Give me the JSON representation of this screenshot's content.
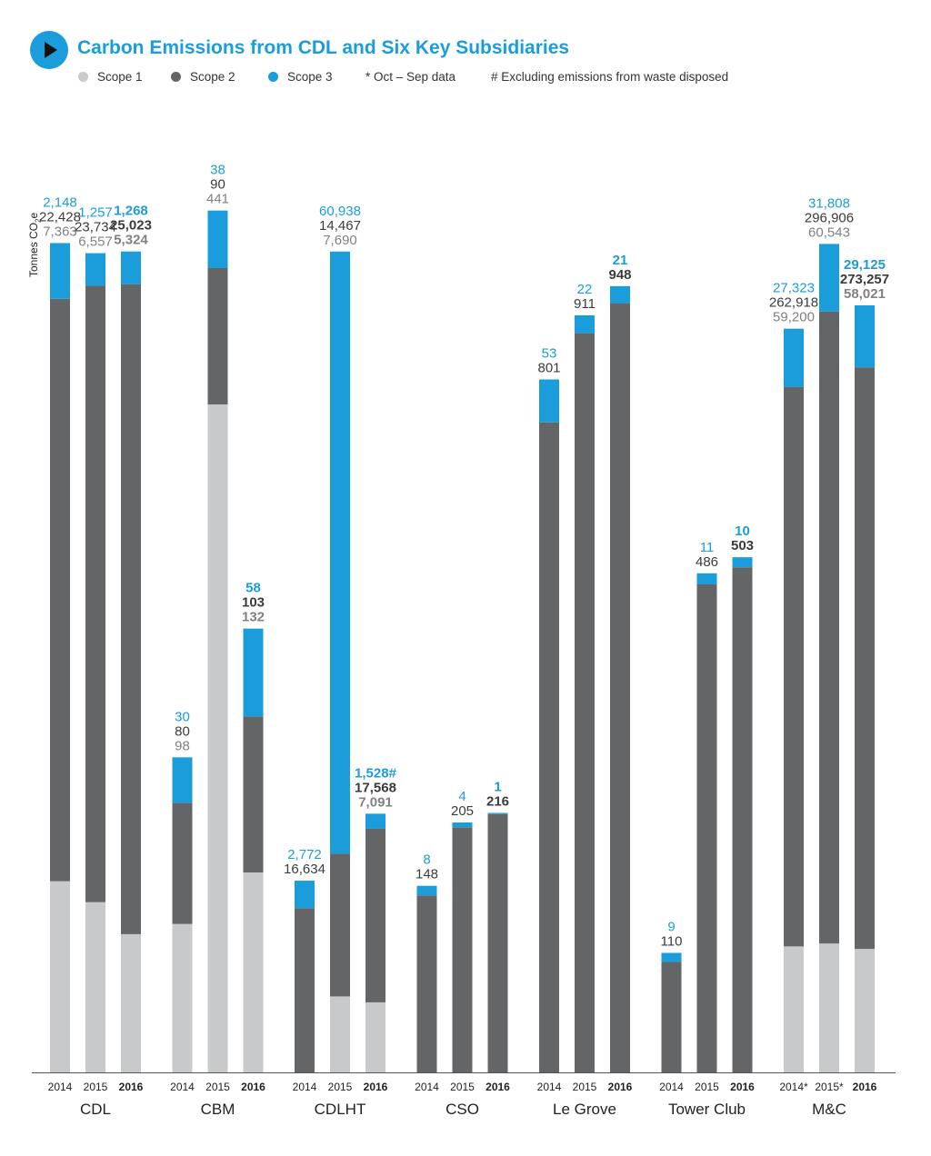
{
  "header": {
    "title": "Carbon Emissions from CDL and Six Key Subsidiaries",
    "play_icon": "play-icon"
  },
  "legend": {
    "items": [
      {
        "label": "Scope 1",
        "color": "#c8c9cb"
      },
      {
        "label": "Scope 2",
        "color": "#646567"
      },
      {
        "label": "Scope 3",
        "color": "#1b9ddb"
      }
    ],
    "notes": [
      "* Oct – Sep data",
      "# Excluding emissions from waste disposed"
    ]
  },
  "chart_data": {
    "type": "bar",
    "stacked": true,
    "ylabel_main": "Tonnes CO",
    "ylabel_sub": "2",
    "ylabel_tail": "e",
    "ylim": [
      0,
      100
    ],
    "groups": [
      {
        "name": "CDL",
        "scale_max": 35000,
        "bars": [
          {
            "year": "2014",
            "bold": false,
            "scope1": 7363,
            "scope2": 22428,
            "scope3": 2148,
            "labels": {
              "scope3": "2,148",
              "scope2": "22,428",
              "scope1": "7,363"
            }
          },
          {
            "year": "2015",
            "bold": false,
            "scope1": 6557,
            "scope2": 23734,
            "scope3": 1257,
            "labels": {
              "scope3": "1,257",
              "scope2": "23,734",
              "scope1": "6,557"
            }
          },
          {
            "year": "2016",
            "bold": true,
            "scope1": 5324,
            "scope2": 25023,
            "scope3": 1268,
            "labels": {
              "scope3": "1,268",
              "scope2": "25,023",
              "scope1": "5,324"
            }
          }
        ]
      },
      {
        "name": "CBM",
        "scale_max": 600,
        "bars": [
          {
            "year": "2014",
            "bold": false,
            "scope1": 98,
            "scope2": 80,
            "scope3": 30,
            "labels": {
              "scope3": "30",
              "scope2": "80",
              "scope1": "98"
            }
          },
          {
            "year": "2015",
            "bold": false,
            "scope1": 441,
            "scope2": 90,
            "scope3": 38,
            "labels": {
              "scope3": "38",
              "scope2": "90",
              "scope1": "441"
            }
          },
          {
            "year": "2016",
            "bold": true,
            "scope1": 132,
            "scope2": 103,
            "scope3": 58,
            "labels": {
              "scope3": "58",
              "scope2": "103",
              "scope1": "132"
            }
          }
        ]
      },
      {
        "name": "CDLHT",
        "scale_max": 92000,
        "bars": [
          {
            "year": "2014",
            "bold": false,
            "scope1": 0,
            "scope2": 16634,
            "scope3": 2772,
            "labels": {
              "scope3": "2,772",
              "scope2": "16,634"
            }
          },
          {
            "year": "2015",
            "bold": false,
            "scope1": 7690,
            "scope2": 14467,
            "scope3": 60938,
            "labels": {
              "scope3": "60,938",
              "scope2": "14,467",
              "scope1": "7,690"
            }
          },
          {
            "year": "2016",
            "bold": true,
            "scope1": 7091,
            "scope2": 17568,
            "scope3": 1528,
            "labels": {
              "scope3": "1,528#",
              "scope2": "17,568",
              "scope1": "7,091"
            }
          }
        ]
      },
      {
        "name": "CSO",
        "scale_max": 760,
        "bars": [
          {
            "year": "2014",
            "bold": false,
            "scope1": 0,
            "scope2": 148,
            "scope3": 8,
            "labels": {
              "scope3": "8",
              "scope2": "148"
            }
          },
          {
            "year": "2015",
            "bold": false,
            "scope1": 0,
            "scope2": 205,
            "scope3": 4,
            "labels": {
              "scope3": "4",
              "scope2": "205"
            }
          },
          {
            "year": "2016",
            "bold": true,
            "scope1": 0,
            "scope2": 216,
            "scope3": 1,
            "labels": {
              "scope3": "1",
              "scope2": "216"
            }
          }
        ]
      },
      {
        "name": "Le Grove",
        "scale_max": 1120,
        "bars": [
          {
            "year": "2014",
            "bold": false,
            "scope1": 0,
            "scope2": 801,
            "scope3": 53,
            "labels": {
              "scope3": "53",
              "scope2": "801"
            }
          },
          {
            "year": "2015",
            "bold": false,
            "scope1": 0,
            "scope2": 911,
            "scope3": 22,
            "labels": {
              "scope3": "22",
              "scope2": "911"
            }
          },
          {
            "year": "2016",
            "bold": true,
            "scope1": 0,
            "scope2": 948,
            "scope3": 21,
            "labels": {
              "scope3": "21",
              "scope2": "948"
            }
          }
        ]
      },
      {
        "name": "Tower Club",
        "scale_max": 905,
        "bars": [
          {
            "year": "2014",
            "bold": false,
            "scope1": 0,
            "scope2": 110,
            "scope3": 9,
            "labels": {
              "scope3": "9",
              "scope2": "110"
            }
          },
          {
            "year": "2015",
            "bold": false,
            "scope1": 0,
            "scope2": 486,
            "scope3": 11,
            "labels": {
              "scope3": "11",
              "scope2": "486"
            }
          },
          {
            "year": "2016",
            "bold": true,
            "scope1": 0,
            "scope2": 503,
            "scope3": 10,
            "labels": {
              "scope3": "10",
              "scope2": "503"
            }
          }
        ]
      },
      {
        "name": "M&C",
        "scale_max": 427000,
        "bars": [
          {
            "year": "2014*",
            "bold": false,
            "scope1": 59200,
            "scope2": 262918,
            "scope3": 27323,
            "labels": {
              "scope3": "27,323",
              "scope2": "262,918",
              "scope1": "59,200"
            }
          },
          {
            "year": "2015*",
            "bold": false,
            "scope1": 60543,
            "scope2": 296906,
            "scope3": 31808,
            "labels": {
              "scope3": "31,808",
              "scope2": "296,906",
              "scope1": "60,543"
            }
          },
          {
            "year": "2016",
            "bold": true,
            "scope1": 58021,
            "scope2": 273257,
            "scope3": 29125,
            "labels": {
              "scope3": "29,125",
              "scope2": "273,257",
              "scope1": "58,021"
            }
          }
        ]
      }
    ]
  }
}
